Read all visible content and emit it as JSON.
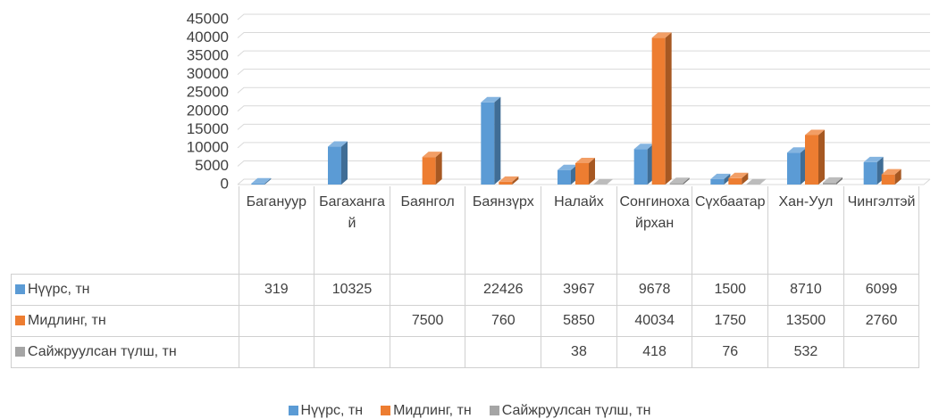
{
  "chart_data": {
    "type": "bar3d",
    "categories": [
      "Багануур",
      "Багахангай",
      "Баянгол",
      "Баянзүрх",
      "Налайх",
      "Сонгинохайрхан",
      "Сүхбаатар",
      "Хан-Уул",
      "Чингэлтэй"
    ],
    "series": [
      {
        "name": "Нүүрс, тн",
        "color": "#5b9bd5",
        "values": [
          319,
          10325,
          null,
          22426,
          3967,
          9678,
          1500,
          8710,
          6099
        ]
      },
      {
        "name": "Мидлинг, тн",
        "color": "#ed7d31",
        "values": [
          null,
          null,
          7500,
          760,
          5850,
          40034,
          1750,
          13500,
          2760
        ]
      },
      {
        "name": "Сайжруулсан түлш, тн",
        "color": "#a5a5a5",
        "values": [
          null,
          null,
          null,
          null,
          38,
          418,
          76,
          532,
          null
        ]
      }
    ],
    "ylim": [
      0,
      45000
    ],
    "yticks": [
      0,
      5000,
      10000,
      15000,
      20000,
      25000,
      30000,
      35000,
      40000,
      45000
    ],
    "grid": true,
    "legend": "bottom",
    "data_table": true
  }
}
